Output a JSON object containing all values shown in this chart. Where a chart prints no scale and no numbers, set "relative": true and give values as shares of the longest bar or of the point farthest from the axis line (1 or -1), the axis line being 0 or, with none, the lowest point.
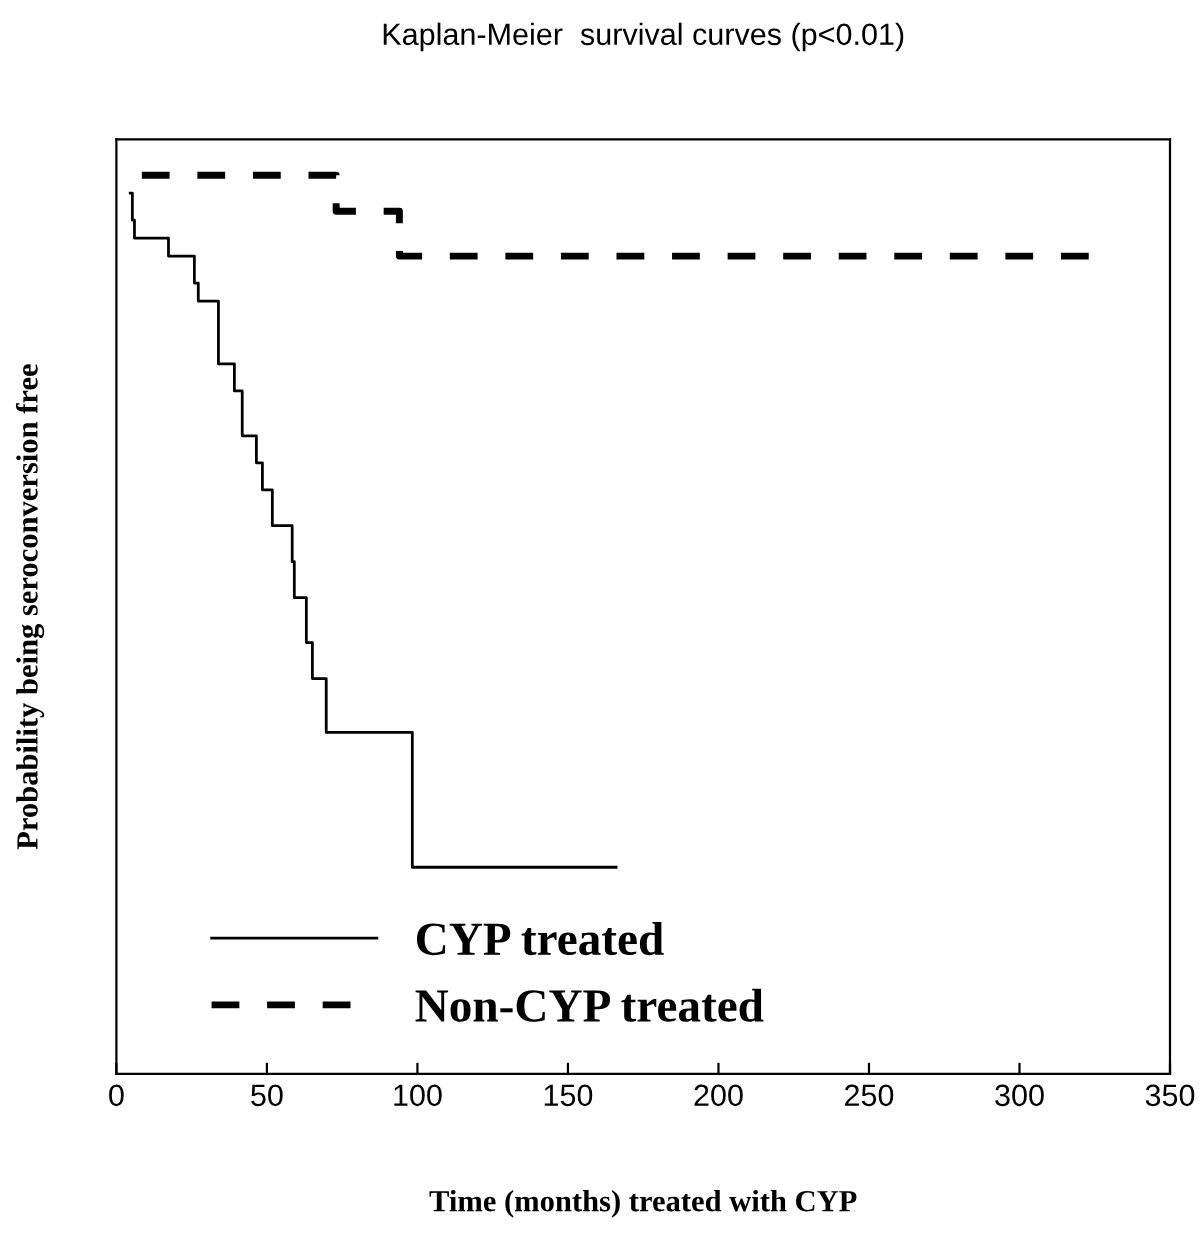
{
  "chart_data": {
    "type": "step",
    "title": "Kaplan-Meier  survival curves (p<0.01)",
    "xlabel": "Time (months) treated with CYP",
    "ylabel": "Probability being seroconversion free",
    "relative": true,
    "xlim": [
      0,
      350
    ],
    "xticks": [
      0,
      50,
      100,
      150,
      200,
      250,
      300,
      350
    ],
    "tick_labels": "x",
    "legend": "bottom left",
    "grid": false,
    "series": [
      {
        "name": "CYP treated",
        "color": "#000000",
        "line_style": "solid",
        "x": [
          4.6,
          5.3,
          6.0,
          17.3,
          25.9,
          27.2,
          33.9,
          39.2,
          41.8,
          46.5,
          48.5,
          51.8,
          58.4,
          59.1,
          63.1,
          65.1,
          69.7,
          98.3,
          166
        ],
        "values": [
          0.98,
          0.95,
          0.93,
          0.91,
          0.88,
          0.86,
          0.79,
          0.76,
          0.71,
          0.68,
          0.65,
          0.61,
          0.57,
          0.53,
          0.48,
          0.44,
          0.38,
          0.23,
          0.23
        ]
      },
      {
        "name": "Non-CYP treated",
        "color": "#000000",
        "line_style": "dashed",
        "x": [
          0,
          73,
          94,
          323
        ],
        "values": [
          1.0,
          0.96,
          0.91,
          0.91
        ]
      }
    ]
  }
}
